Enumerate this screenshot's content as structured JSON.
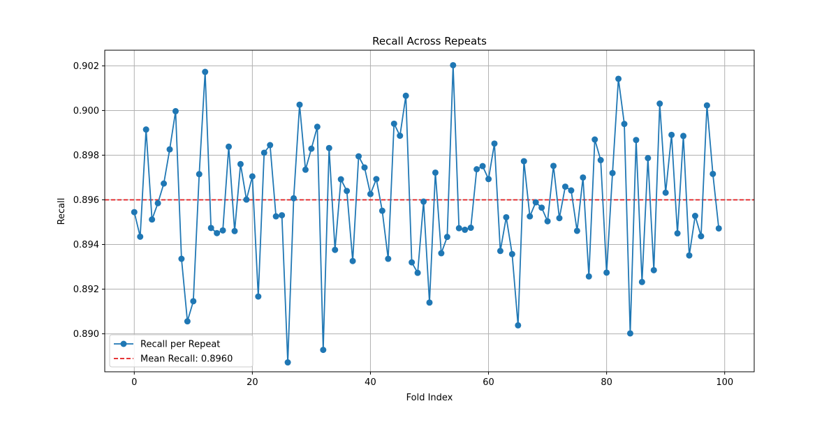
{
  "chart_data": {
    "type": "line",
    "title": "Recall Across Repeats",
    "xlabel": "Fold Index",
    "ylabel": "Recall",
    "xlim": [
      -5,
      105
    ],
    "ylim": [
      0.8883,
      0.9027
    ],
    "xticks": [
      0,
      20,
      40,
      60,
      80,
      100
    ],
    "yticks": [
      0.89,
      0.892,
      0.894,
      0.896,
      0.898,
      0.9,
      0.902
    ],
    "ytick_format": 3,
    "grid": true,
    "legend_position": "lower-left",
    "series": [
      {
        "name": "Recall per Repeat",
        "color": "#1f77b4",
        "marker": "circle",
        "x": [
          0,
          1,
          2,
          3,
          4,
          5,
          6,
          7,
          8,
          9,
          10,
          11,
          12,
          13,
          14,
          15,
          16,
          17,
          18,
          19,
          20,
          21,
          22,
          23,
          24,
          25,
          26,
          27,
          28,
          29,
          30,
          31,
          32,
          33,
          34,
          35,
          36,
          37,
          38,
          39,
          40,
          41,
          42,
          43,
          44,
          45,
          46,
          47,
          48,
          49,
          50,
          51,
          52,
          53,
          54,
          55,
          56,
          57,
          58,
          59,
          60,
          61,
          62,
          63,
          64,
          65,
          66,
          67,
          68,
          69,
          70,
          71,
          72,
          73,
          74,
          75,
          76,
          77,
          78,
          79,
          80,
          81,
          82,
          83,
          84,
          85,
          86,
          87,
          88,
          89,
          90,
          91,
          92,
          93,
          94,
          95,
          96,
          97,
          98,
          99
        ],
        "values": [
          0.89545,
          0.89435,
          0.89915,
          0.89512,
          0.89585,
          0.89673,
          0.89826,
          0.89997,
          0.89336,
          0.89056,
          0.89146,
          0.89715,
          0.90173,
          0.89474,
          0.89451,
          0.89463,
          0.89838,
          0.8946,
          0.8976,
          0.89601,
          0.89705,
          0.89167,
          0.89811,
          0.89845,
          0.89526,
          0.89531,
          0.88872,
          0.89607,
          0.90026,
          0.89735,
          0.89829,
          0.89927,
          0.88928,
          0.89832,
          0.89376,
          0.89692,
          0.8964,
          0.89326,
          0.89795,
          0.89745,
          0.89626,
          0.89693,
          0.89551,
          0.89336,
          0.89941,
          0.89887,
          0.90066,
          0.8932,
          0.89273,
          0.89592,
          0.8914,
          0.89722,
          0.89361,
          0.89434,
          0.90203,
          0.89473,
          0.89466,
          0.89475,
          0.89737,
          0.89751,
          0.89693,
          0.89852,
          0.89371,
          0.89522,
          0.89357,
          0.89038,
          0.89773,
          0.89526,
          0.89589,
          0.89565,
          0.89504,
          0.89752,
          0.89518,
          0.89659,
          0.89642,
          0.89461,
          0.897,
          0.89257,
          0.8987,
          0.89778,
          0.89274,
          0.8972,
          0.90142,
          0.8994,
          0.89002,
          0.89868,
          0.89232,
          0.89787,
          0.89285,
          0.90031,
          0.89632,
          0.89891,
          0.8945,
          0.89886,
          0.89351,
          0.89528,
          0.89437,
          0.90023,
          0.89716,
          0.89472
        ]
      }
    ],
    "reference_line": {
      "name": "Mean Recall: 0.8960",
      "value": 0.896,
      "color": "#e31a1c",
      "style": "dashed"
    }
  }
}
